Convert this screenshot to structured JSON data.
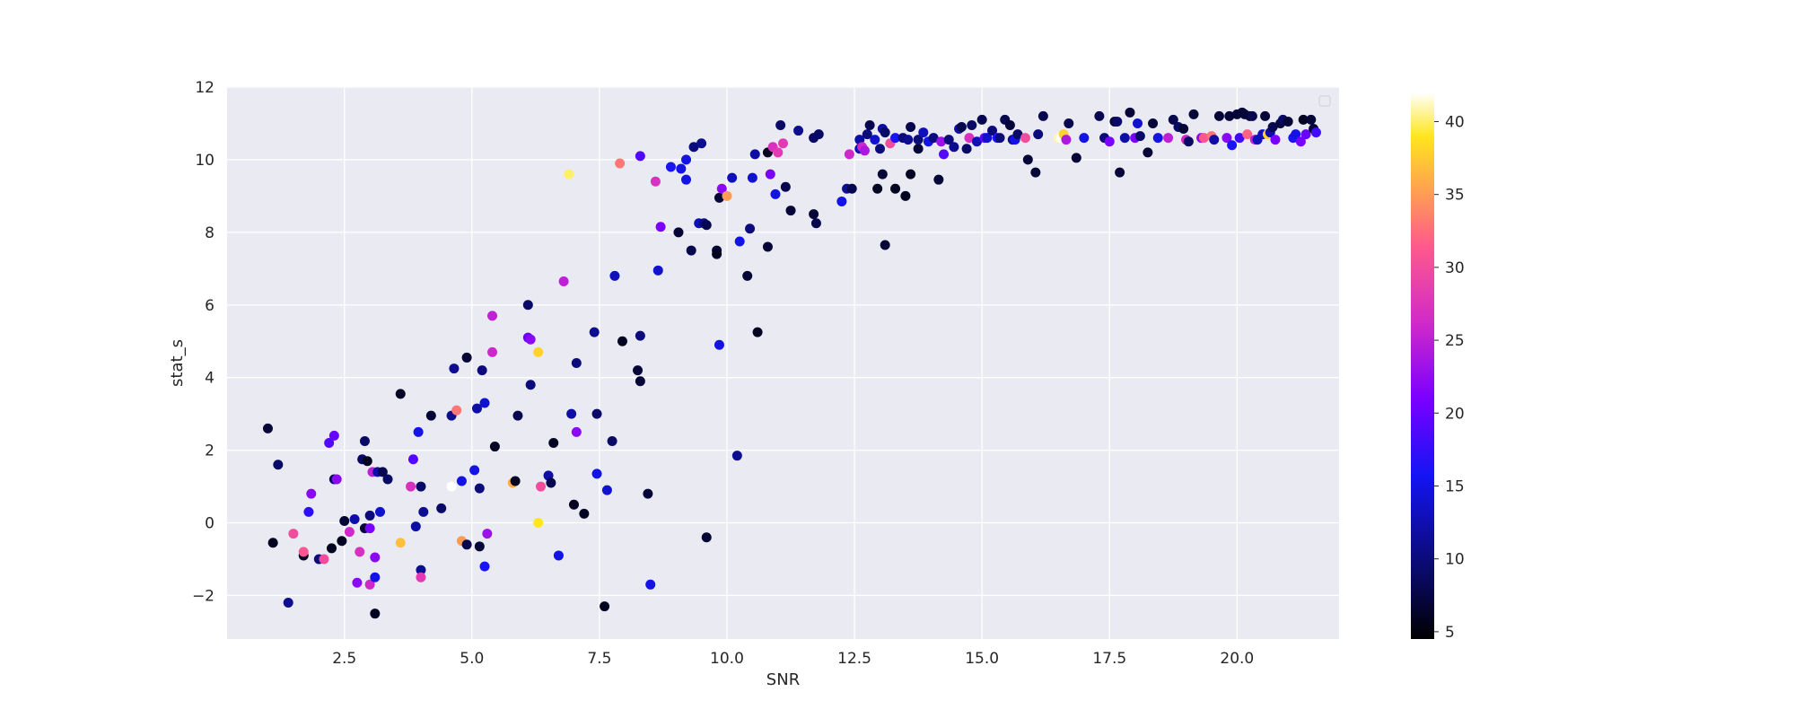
{
  "chart_data": {
    "type": "scatter",
    "title": "",
    "xlabel": "SNR",
    "ylabel": "stat_s",
    "xlim": [
      0.2,
      22.0
    ],
    "ylim": [
      -3.2,
      12.0
    ],
    "x_ticks": [
      2.5,
      5.0,
      7.5,
      10.0,
      12.5,
      15.0,
      17.5,
      20.0
    ],
    "x_tick_labels": [
      "2.5",
      "5.0",
      "7.5",
      "10.0",
      "12.5",
      "15.0",
      "17.5",
      "20.0"
    ],
    "y_ticks": [
      -2,
      0,
      2,
      4,
      6,
      8,
      10,
      12
    ],
    "y_tick_labels": [
      "−2",
      "0",
      "2",
      "4",
      "6",
      "8",
      "10",
      "12"
    ],
    "grid": true,
    "legend": "top-right (empty)",
    "colorbar": {
      "colormap": "gnuplot2",
      "range": [
        4.5,
        42
      ],
      "ticks": [
        5,
        10,
        15,
        20,
        25,
        30,
        35,
        40
      ],
      "tick_labels": [
        "5",
        "10",
        "15",
        "20",
        "25",
        "30",
        "35",
        "40"
      ]
    },
    "colors": {
      "plot_background": "#eaeaf2",
      "grid": "#ffffff",
      "text": "#262626"
    },
    "points": [
      [
        1.0,
        2.6,
        7
      ],
      [
        1.1,
        -0.55,
        6
      ],
      [
        1.2,
        1.6,
        9
      ],
      [
        1.4,
        -2.2,
        11
      ],
      [
        1.5,
        -0.3,
        30
      ],
      [
        1.7,
        -0.9,
        6
      ],
      [
        1.7,
        -0.8,
        31
      ],
      [
        1.8,
        0.3,
        17
      ],
      [
        1.85,
        0.8,
        22
      ],
      [
        2.0,
        -1.0,
        10
      ],
      [
        2.1,
        -1.0,
        30
      ],
      [
        2.2,
        2.2,
        19
      ],
      [
        2.25,
        -0.7,
        6
      ],
      [
        2.3,
        1.2,
        9
      ],
      [
        2.3,
        2.4,
        20
      ],
      [
        2.35,
        1.2,
        22
      ],
      [
        2.45,
        -0.5,
        6
      ],
      [
        2.5,
        0.05,
        7
      ],
      [
        2.6,
        -0.25,
        26
      ],
      [
        2.7,
        0.1,
        12
      ],
      [
        2.75,
        -1.65,
        22
      ],
      [
        2.8,
        -0.8,
        27
      ],
      [
        2.85,
        1.75,
        9
      ],
      [
        2.9,
        2.25,
        9
      ],
      [
        2.9,
        -0.15,
        7
      ],
      [
        2.95,
        1.7,
        6
      ],
      [
        3.0,
        0.2,
        10
      ],
      [
        3.0,
        -0.15,
        21
      ],
      [
        3.0,
        -1.7,
        26
      ],
      [
        3.05,
        1.4,
        25
      ],
      [
        3.1,
        -0.95,
        22
      ],
      [
        3.1,
        -2.5,
        6
      ],
      [
        3.1,
        -1.5,
        15
      ],
      [
        3.15,
        1.4,
        12
      ],
      [
        3.2,
        0.3,
        14
      ],
      [
        3.25,
        1.4,
        8
      ],
      [
        3.35,
        1.2,
        9
      ],
      [
        3.6,
        3.55,
        6
      ],
      [
        3.6,
        -0.55,
        37
      ],
      [
        3.8,
        1.0,
        27
      ],
      [
        3.85,
        1.75,
        19
      ],
      [
        3.9,
        -0.1,
        12
      ],
      [
        3.95,
        2.5,
        15
      ],
      [
        4.0,
        1.0,
        9
      ],
      [
        4.0,
        -1.3,
        11
      ],
      [
        4.0,
        -1.5,
        28
      ],
      [
        4.05,
        0.3,
        11
      ],
      [
        4.2,
        2.95,
        7
      ],
      [
        4.4,
        0.4,
        9
      ],
      [
        4.6,
        1.0,
        42
      ],
      [
        4.6,
        2.95,
        11
      ],
      [
        4.65,
        4.25,
        11
      ],
      [
        4.7,
        3.1,
        33
      ],
      [
        4.8,
        1.15,
        15
      ],
      [
        4.8,
        -0.5,
        35
      ],
      [
        4.9,
        -0.6,
        8
      ],
      [
        4.9,
        4.55,
        7
      ],
      [
        5.05,
        1.45,
        15
      ],
      [
        5.1,
        3.15,
        12
      ],
      [
        5.15,
        0.95,
        10
      ],
      [
        5.15,
        -0.65,
        7
      ],
      [
        5.2,
        4.2,
        10
      ],
      [
        5.25,
        3.3,
        14
      ],
      [
        5.25,
        -1.2,
        16
      ],
      [
        5.3,
        -0.3,
        23
      ],
      [
        5.4,
        4.7,
        26
      ],
      [
        5.4,
        5.7,
        25
      ],
      [
        5.45,
        2.1,
        6
      ],
      [
        5.8,
        1.1,
        36
      ],
      [
        5.85,
        1.15,
        6
      ],
      [
        5.9,
        2.95,
        8
      ],
      [
        6.1,
        5.1,
        20
      ],
      [
        6.1,
        6.0,
        9
      ],
      [
        6.15,
        3.8,
        10
      ],
      [
        6.15,
        5.05,
        22
      ],
      [
        6.3,
        4.7,
        38
      ],
      [
        6.3,
        0.0,
        39
      ],
      [
        6.35,
        1.0,
        30
      ],
      [
        6.5,
        1.3,
        12
      ],
      [
        6.55,
        1.1,
        8
      ],
      [
        6.6,
        2.2,
        6
      ],
      [
        6.7,
        -0.9,
        15
      ],
      [
        6.8,
        6.65,
        25
      ],
      [
        6.9,
        9.6,
        40
      ],
      [
        6.95,
        3.0,
        12
      ],
      [
        7.0,
        0.5,
        6
      ],
      [
        7.05,
        4.4,
        10
      ],
      [
        7.05,
        2.5,
        22
      ],
      [
        7.2,
        0.25,
        6
      ],
      [
        7.4,
        5.25,
        11
      ],
      [
        7.45,
        3.0,
        9
      ],
      [
        7.45,
        1.35,
        15
      ],
      [
        7.6,
        -2.3,
        6
      ],
      [
        7.65,
        0.9,
        14
      ],
      [
        7.75,
        2.25,
        9
      ],
      [
        7.8,
        6.8,
        13
      ],
      [
        7.9,
        9.9,
        33
      ],
      [
        7.95,
        5.0,
        6
      ],
      [
        8.25,
        4.2,
        7
      ],
      [
        8.3,
        5.15,
        10
      ],
      [
        8.3,
        3.9,
        7
      ],
      [
        8.3,
        10.1,
        19
      ],
      [
        8.45,
        0.8,
        7
      ],
      [
        8.5,
        -1.7,
        15
      ],
      [
        8.6,
        9.4,
        27
      ],
      [
        8.65,
        6.95,
        14
      ],
      [
        8.7,
        8.15,
        21
      ],
      [
        8.9,
        9.8,
        16
      ],
      [
        9.05,
        8.0,
        7
      ],
      [
        9.1,
        9.75,
        15
      ],
      [
        9.2,
        9.45,
        15
      ],
      [
        9.2,
        10.0,
        15
      ],
      [
        9.3,
        7.5,
        8
      ],
      [
        9.35,
        10.35,
        10
      ],
      [
        9.45,
        8.25,
        13
      ],
      [
        9.5,
        10.45,
        11
      ],
      [
        9.55,
        8.25,
        10
      ],
      [
        9.6,
        -0.4,
        7
      ],
      [
        9.6,
        8.2,
        8
      ],
      [
        9.8,
        7.5,
        7
      ],
      [
        9.8,
        7.4,
        6
      ],
      [
        9.85,
        8.95,
        7
      ],
      [
        9.85,
        4.9,
        15
      ],
      [
        9.9,
        9.2,
        22
      ],
      [
        10.0,
        9.0,
        35
      ],
      [
        10.1,
        9.5,
        13
      ],
      [
        10.2,
        1.85,
        11
      ],
      [
        10.25,
        7.75,
        15
      ],
      [
        10.4,
        6.8,
        7
      ],
      [
        10.5,
        9.5,
        14
      ],
      [
        10.45,
        8.1,
        10
      ],
      [
        10.55,
        10.15,
        12
      ],
      [
        10.6,
        5.25,
        6
      ],
      [
        10.8,
        10.2,
        6
      ],
      [
        10.8,
        7.6,
        7
      ],
      [
        10.85,
        9.6,
        21
      ],
      [
        10.9,
        10.35,
        27
      ],
      [
        10.95,
        9.05,
        15
      ],
      [
        11.0,
        10.2,
        28
      ],
      [
        11.05,
        10.95,
        9
      ],
      [
        11.1,
        10.45,
        28
      ],
      [
        11.15,
        9.25,
        8
      ],
      [
        11.25,
        8.6,
        7
      ],
      [
        11.4,
        10.8,
        11
      ],
      [
        11.7,
        10.6,
        9
      ],
      [
        11.7,
        8.5,
        7
      ],
      [
        11.75,
        8.25,
        8
      ],
      [
        11.8,
        10.7,
        9
      ],
      [
        12.25,
        8.85,
        15
      ],
      [
        12.35,
        9.2,
        11
      ],
      [
        12.4,
        10.15,
        26
      ],
      [
        12.45,
        9.2,
        8
      ],
      [
        12.6,
        10.55,
        12
      ],
      [
        12.6,
        10.3,
        13
      ],
      [
        12.65,
        10.35,
        26
      ],
      [
        12.7,
        10.25,
        24
      ],
      [
        12.75,
        10.7,
        10
      ],
      [
        12.8,
        10.95,
        8
      ],
      [
        12.9,
        10.55,
        14
      ],
      [
        12.95,
        9.2,
        6
      ],
      [
        13.0,
        10.3,
        10
      ],
      [
        13.05,
        10.85,
        12
      ],
      [
        13.05,
        9.6,
        7
      ],
      [
        13.1,
        7.65,
        7
      ],
      [
        13.1,
        10.75,
        9
      ],
      [
        13.2,
        10.45,
        30
      ],
      [
        13.3,
        10.6,
        16
      ],
      [
        13.3,
        9.2,
        6
      ],
      [
        13.45,
        10.6,
        10
      ],
      [
        13.5,
        9.0,
        6
      ],
      [
        13.55,
        10.55,
        11
      ],
      [
        13.6,
        9.6,
        6
      ],
      [
        13.6,
        10.9,
        8
      ],
      [
        13.75,
        10.3,
        7
      ],
      [
        13.75,
        10.55,
        10
      ],
      [
        13.85,
        10.75,
        13
      ],
      [
        13.95,
        10.5,
        15
      ],
      [
        14.05,
        10.6,
        10
      ],
      [
        14.15,
        9.45,
        7
      ],
      [
        14.2,
        10.5,
        23
      ],
      [
        14.25,
        10.15,
        19
      ],
      [
        14.35,
        10.55,
        10
      ],
      [
        14.45,
        10.35,
        11
      ],
      [
        14.55,
        10.85,
        12
      ],
      [
        14.6,
        10.9,
        8
      ],
      [
        14.7,
        10.3,
        9
      ],
      [
        14.75,
        10.6,
        27
      ],
      [
        14.8,
        10.95,
        9
      ],
      [
        14.9,
        10.5,
        13
      ],
      [
        15.0,
        11.1,
        8
      ],
      [
        15.05,
        10.6,
        20
      ],
      [
        15.1,
        10.6,
        14
      ],
      [
        15.2,
        10.8,
        10
      ],
      [
        15.3,
        10.6,
        16
      ],
      [
        15.35,
        10.6,
        10
      ],
      [
        15.45,
        11.1,
        8
      ],
      [
        15.55,
        10.95,
        7
      ],
      [
        15.6,
        10.55,
        11
      ],
      [
        15.65,
        10.55,
        15
      ],
      [
        15.7,
        10.7,
        9
      ],
      [
        15.85,
        10.6,
        30
      ],
      [
        15.9,
        10.0,
        7
      ],
      [
        16.05,
        9.65,
        7
      ],
      [
        16.1,
        10.7,
        10
      ],
      [
        16.2,
        11.2,
        8
      ],
      [
        16.5,
        10.6,
        41
      ],
      [
        16.55,
        10.6,
        42
      ],
      [
        16.6,
        10.7,
        38
      ],
      [
        16.65,
        10.55,
        24
      ],
      [
        16.7,
        11.0,
        8
      ],
      [
        16.85,
        10.05,
        7
      ],
      [
        17.0,
        10.6,
        15
      ],
      [
        17.3,
        11.2,
        8
      ],
      [
        17.4,
        10.6,
        10
      ],
      [
        17.5,
        10.5,
        21
      ],
      [
        17.6,
        11.05,
        7
      ],
      [
        17.65,
        11.05,
        9
      ],
      [
        17.7,
        9.65,
        7
      ],
      [
        17.8,
        10.6,
        12
      ],
      [
        17.9,
        11.3,
        7
      ],
      [
        18.0,
        10.6,
        21
      ],
      [
        18.05,
        11.0,
        14
      ],
      [
        18.1,
        10.65,
        9
      ],
      [
        18.25,
        10.2,
        7
      ],
      [
        18.35,
        11.0,
        7
      ],
      [
        18.45,
        10.6,
        15
      ],
      [
        18.65,
        10.6,
        25
      ],
      [
        18.75,
        11.1,
        8
      ],
      [
        18.85,
        10.9,
        9
      ],
      [
        18.95,
        10.85,
        7
      ],
      [
        19.0,
        10.55,
        26
      ],
      [
        19.05,
        10.5,
        9
      ],
      [
        19.15,
        11.25,
        7
      ],
      [
        19.3,
        10.6,
        22
      ],
      [
        19.35,
        10.6,
        31
      ],
      [
        19.5,
        10.65,
        33
      ],
      [
        19.55,
        10.55,
        12
      ],
      [
        19.65,
        11.2,
        7
      ],
      [
        19.8,
        10.6,
        22
      ],
      [
        19.85,
        11.2,
        7
      ],
      [
        19.9,
        10.4,
        16
      ],
      [
        20.0,
        11.25,
        7
      ],
      [
        20.05,
        10.6,
        18
      ],
      [
        20.1,
        11.3,
        7
      ],
      [
        20.15,
        11.25,
        7
      ],
      [
        20.2,
        10.7,
        32
      ],
      [
        20.25,
        11.2,
        7
      ],
      [
        20.3,
        11.2,
        8
      ],
      [
        20.35,
        10.55,
        25
      ],
      [
        20.4,
        10.55,
        13
      ],
      [
        20.5,
        10.7,
        13
      ],
      [
        20.55,
        11.2,
        7
      ],
      [
        20.6,
        10.7,
        38
      ],
      [
        20.65,
        10.75,
        12
      ],
      [
        20.7,
        10.9,
        8
      ],
      [
        20.75,
        10.55,
        21
      ],
      [
        20.85,
        11.0,
        7
      ],
      [
        20.9,
        11.1,
        9
      ],
      [
        21.0,
        11.05,
        7
      ],
      [
        21.1,
        10.6,
        16
      ],
      [
        21.15,
        10.7,
        15
      ],
      [
        21.25,
        10.5,
        21
      ],
      [
        21.3,
        11.1,
        6
      ],
      [
        21.35,
        10.7,
        20
      ],
      [
        21.45,
        11.1,
        7
      ],
      [
        21.5,
        10.85,
        7
      ],
      [
        21.55,
        10.75,
        18
      ]
    ]
  }
}
